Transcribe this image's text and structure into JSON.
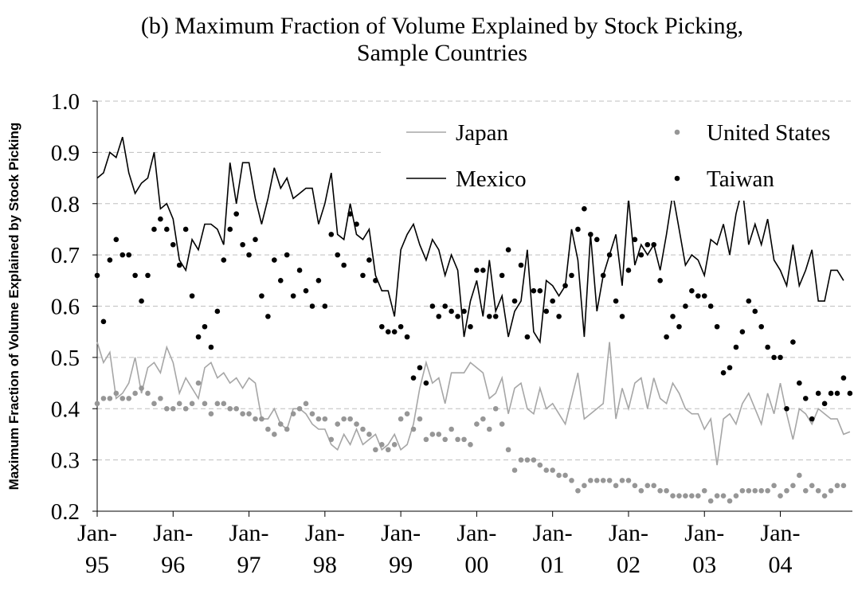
{
  "chart_data": {
    "type": "line",
    "title": "(b) Maximum Fraction of Volume Explained by Stock Picking,\nSample Countries",
    "ylabel": "Maximum Fraction of Volume Explained by Stock Picking",
    "categories": [
      "Jan-\n95",
      null,
      null,
      null,
      null,
      null,
      null,
      null,
      null,
      null,
      null,
      null,
      "Jan-\n96",
      null,
      null,
      null,
      null,
      null,
      null,
      null,
      null,
      null,
      null,
      null,
      "Jan-\n97",
      null,
      null,
      null,
      null,
      null,
      null,
      null,
      null,
      null,
      null,
      null,
      "Jan-\n98",
      null,
      null,
      null,
      null,
      null,
      null,
      null,
      null,
      null,
      null,
      null,
      "Jan-\n99",
      null,
      null,
      null,
      null,
      null,
      null,
      null,
      null,
      null,
      null,
      null,
      "Jan-\n00",
      null,
      null,
      null,
      null,
      null,
      null,
      null,
      null,
      null,
      null,
      null,
      "Jan-\n01",
      null,
      null,
      null,
      null,
      null,
      null,
      null,
      null,
      null,
      null,
      null,
      "Jan-\n02",
      null,
      null,
      null,
      null,
      null,
      null,
      null,
      null,
      null,
      null,
      null,
      "Jan-\n03",
      null,
      null,
      null,
      null,
      null,
      null,
      null,
      null,
      null,
      null,
      null,
      "Jan-\n04",
      null,
      null,
      null,
      null,
      null,
      null,
      null,
      null,
      null,
      null,
      null
    ],
    "ylim": [
      0.2,
      1.0
    ],
    "yticks": [
      0.2,
      0.3,
      0.4,
      0.5,
      0.6,
      0.7,
      0.8,
      0.9,
      {
        "value": 1.0,
        "label": "1.0"
      }
    ],
    "grid": true,
    "legend": "upper right",
    "series": [
      {
        "name": "Japan",
        "mode": "line",
        "color": "#a6a6a6",
        "values": [
          0.53,
          0.49,
          0.51,
          0.42,
          0.43,
          0.45,
          0.5,
          0.43,
          0.48,
          0.49,
          0.47,
          0.52,
          0.49,
          0.43,
          0.46,
          0.44,
          0.42,
          0.48,
          0.49,
          0.46,
          0.47,
          0.45,
          0.46,
          0.44,
          0.46,
          0.45,
          0.38,
          0.38,
          0.4,
          0.37,
          0.36,
          0.4,
          0.4,
          0.39,
          0.37,
          0.36,
          0.36,
          0.33,
          0.32,
          0.35,
          0.33,
          0.36,
          0.33,
          0.34,
          0.35,
          0.32,
          0.33,
          0.35,
          0.32,
          0.33,
          0.37,
          0.44,
          0.49,
          0.45,
          0.46,
          0.41,
          0.47,
          0.47,
          0.47,
          0.49,
          0.48,
          0.47,
          0.42,
          0.43,
          0.46,
          0.39,
          0.44,
          0.45,
          0.4,
          0.39,
          0.44,
          0.4,
          0.41,
          0.39,
          0.37,
          0.42,
          0.47,
          0.38,
          0.39,
          0.4,
          0.41,
          0.53,
          0.38,
          0.44,
          0.4,
          0.45,
          0.46,
          0.4,
          0.46,
          0.42,
          0.41,
          0.45,
          0.43,
          0.4,
          0.39,
          0.39,
          0.36,
          0.38,
          0.29,
          0.38,
          0.39,
          0.37,
          0.41,
          0.43,
          0.4,
          0.37,
          0.43,
          0.39,
          0.45,
          0.39,
          0.34,
          0.4,
          0.39,
          0.37,
          0.4,
          0.39,
          0.38,
          0.38,
          0.35,
          0.355
        ]
      },
      {
        "name": "United States",
        "mode": "markers",
        "color": "#969696",
        "values": [
          0.41,
          0.42,
          0.42,
          0.43,
          0.42,
          0.42,
          0.43,
          0.44,
          0.43,
          0.41,
          0.42,
          0.4,
          0.4,
          0.41,
          0.4,
          0.41,
          0.45,
          0.41,
          0.39,
          0.41,
          0.41,
          0.4,
          0.4,
          0.39,
          0.39,
          0.38,
          0.38,
          0.36,
          0.35,
          0.37,
          0.36,
          0.39,
          0.4,
          0.41,
          0.39,
          0.38,
          0.38,
          0.34,
          0.37,
          0.38,
          0.38,
          0.37,
          0.36,
          0.35,
          0.32,
          0.33,
          0.32,
          0.33,
          0.38,
          0.39,
          0.36,
          0.38,
          0.34,
          0.35,
          0.35,
          0.34,
          0.36,
          0.34,
          0.34,
          0.33,
          0.37,
          0.38,
          0.36,
          0.4,
          0.37,
          0.32,
          0.28,
          0.3,
          0.3,
          0.3,
          0.29,
          0.28,
          0.28,
          0.27,
          0.27,
          0.26,
          0.24,
          0.25,
          0.26,
          0.26,
          0.26,
          0.26,
          0.25,
          0.26,
          0.26,
          0.25,
          0.24,
          0.25,
          0.25,
          0.24,
          0.24,
          0.23,
          0.23,
          0.23,
          0.23,
          0.23,
          0.24,
          0.22,
          0.23,
          0.23,
          0.22,
          0.23,
          0.24,
          0.24,
          0.24,
          0.24,
          0.24,
          0.25,
          0.23,
          0.24,
          0.25,
          0.27,
          0.24,
          0.25,
          0.24,
          0.23,
          0.24,
          0.25,
          0.25,
          null
        ]
      },
      {
        "name": "Mexico",
        "mode": "line",
        "color": "#000000",
        "values": [
          0.85,
          0.86,
          0.9,
          0.89,
          0.93,
          0.86,
          0.82,
          0.84,
          0.85,
          0.9,
          0.79,
          0.8,
          0.77,
          0.69,
          0.67,
          0.73,
          0.71,
          0.76,
          0.76,
          0.75,
          0.72,
          0.88,
          0.8,
          0.88,
          0.88,
          0.81,
          0.76,
          0.81,
          0.87,
          0.83,
          0.85,
          0.81,
          0.82,
          0.83,
          0.83,
          0.76,
          0.8,
          0.86,
          0.74,
          0.73,
          0.8,
          0.74,
          0.73,
          0.75,
          0.66,
          0.63,
          0.63,
          0.58,
          0.71,
          0.74,
          0.76,
          0.72,
          0.69,
          0.73,
          0.71,
          0.66,
          0.7,
          0.67,
          0.54,
          0.61,
          0.65,
          0.58,
          0.69,
          0.59,
          0.62,
          0.54,
          0.59,
          0.61,
          0.71,
          0.55,
          0.53,
          0.65,
          0.64,
          0.62,
          0.64,
          0.75,
          0.69,
          0.54,
          0.74,
          0.59,
          0.66,
          0.7,
          0.74,
          0.64,
          0.81,
          0.68,
          0.72,
          0.7,
          0.72,
          0.67,
          0.74,
          0.82,
          0.75,
          0.68,
          0.7,
          0.69,
          0.66,
          0.73,
          0.72,
          0.76,
          0.7,
          0.78,
          0.83,
          0.72,
          0.76,
          0.72,
          0.77,
          0.69,
          0.67,
          0.64,
          0.72,
          0.64,
          0.67,
          0.71,
          0.61,
          0.61,
          0.67,
          0.67,
          0.65,
          null
        ]
      },
      {
        "name": "Taiwan",
        "mode": "markers",
        "color": "#000000",
        "values": [
          0.66,
          0.57,
          0.69,
          0.73,
          0.7,
          0.7,
          0.66,
          0.61,
          0.66,
          0.75,
          0.77,
          0.75,
          0.72,
          0.68,
          0.75,
          0.62,
          0.54,
          0.56,
          0.52,
          0.59,
          0.69,
          0.75,
          0.78,
          0.72,
          0.7,
          0.73,
          0.62,
          0.58,
          0.69,
          0.65,
          0.7,
          0.62,
          0.67,
          0.63,
          0.6,
          0.65,
          0.6,
          0.74,
          0.7,
          0.68,
          0.78,
          0.76,
          0.66,
          0.69,
          0.65,
          0.56,
          0.55,
          0.55,
          0.56,
          0.54,
          0.46,
          0.48,
          0.45,
          0.6,
          0.58,
          0.6,
          0.59,
          0.58,
          0.59,
          0.56,
          0.67,
          0.67,
          0.58,
          0.58,
          0.66,
          0.71,
          0.61,
          0.68,
          0.54,
          0.63,
          0.63,
          0.59,
          0.61,
          0.58,
          0.64,
          0.66,
          0.75,
          0.79,
          0.74,
          0.73,
          0.66,
          0.7,
          0.61,
          0.58,
          0.67,
          0.73,
          0.7,
          0.72,
          0.72,
          0.65,
          0.54,
          0.58,
          0.56,
          0.6,
          0.63,
          0.62,
          0.62,
          0.6,
          0.56,
          0.47,
          0.48,
          0.52,
          0.55,
          0.61,
          0.59,
          0.56,
          0.52,
          0.5,
          0.5,
          0.4,
          0.53,
          0.45,
          0.42,
          0.38,
          0.43,
          0.41,
          0.43,
          0.43,
          0.46,
          0.43
        ]
      }
    ]
  }
}
